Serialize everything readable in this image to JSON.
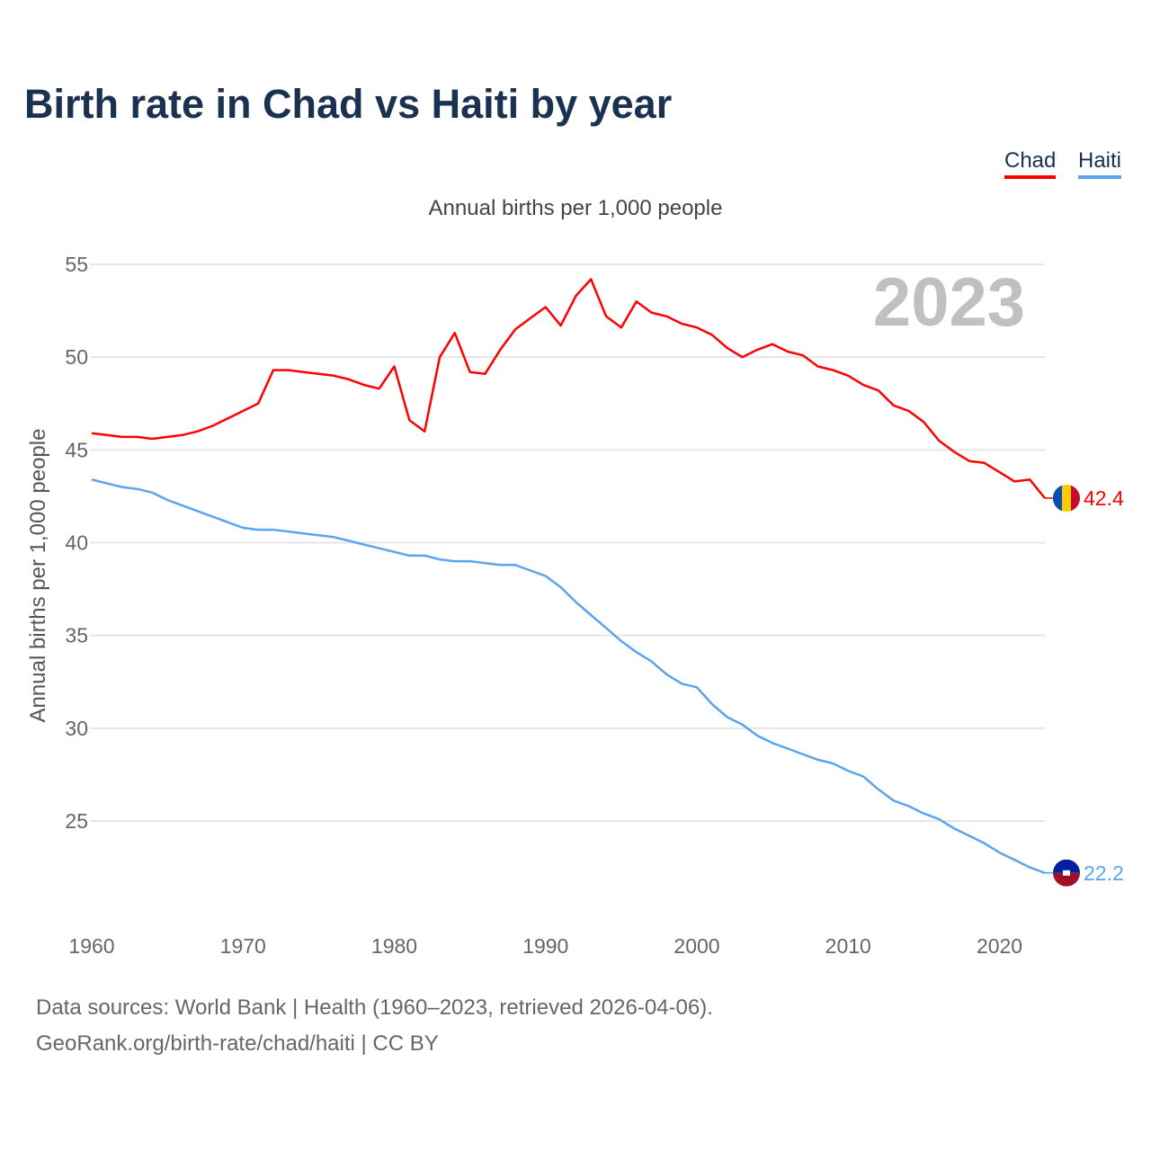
{
  "title": "Birth rate in Chad vs Haiti by year",
  "legend": [
    {
      "label": "Chad",
      "color": "#ff0000"
    },
    {
      "label": "Haiti",
      "color": "#5aa5ee"
    }
  ],
  "subtitle": "Annual births per 1,000 people",
  "footer": {
    "line1": "Data sources: World Bank | Health (1960–2023, retrieved 2026-04-06).",
    "line2": "GeoRank.org/birth-rate/chad/haiti | CC BY"
  },
  "chart_data": {
    "type": "line",
    "title": "Birth rate in Chad vs Haiti by year",
    "ylabel": "Annual births per 1,000 people",
    "xlabel": "",
    "year_label": "2023",
    "xlim": [
      1960,
      2023
    ],
    "ylim": [
      20,
      55
    ],
    "x_ticks": [
      1960,
      1970,
      1980,
      1990,
      2000,
      2010,
      2020
    ],
    "y_ticks": [
      25,
      30,
      35,
      40,
      45,
      50,
      55
    ],
    "grid": true,
    "legend_position": "top-right",
    "x_start": 1960,
    "series": [
      {
        "name": "Chad",
        "color": "#ff0000",
        "end_label": "42.4",
        "flag": "chad-flag",
        "values": [
          45.9,
          45.8,
          45.7,
          45.7,
          45.6,
          45.7,
          45.8,
          46.0,
          46.3,
          46.7,
          47.1,
          47.5,
          49.3,
          49.3,
          49.2,
          49.1,
          49.0,
          48.8,
          48.5,
          48.3,
          49.5,
          46.6,
          46.0,
          50.0,
          51.3,
          49.2,
          49.1,
          50.4,
          51.5,
          52.1,
          52.7,
          51.7,
          53.3,
          54.2,
          52.2,
          51.6,
          53.0,
          52.4,
          52.2,
          51.8,
          51.6,
          51.2,
          50.5,
          50.0,
          50.4,
          50.7,
          50.3,
          50.1,
          49.5,
          49.3,
          49.0,
          48.5,
          48.2,
          47.4,
          47.1,
          46.5,
          45.5,
          44.9,
          44.4,
          44.3,
          43.8,
          43.3,
          43.4,
          42.4
        ]
      },
      {
        "name": "Haiti",
        "color": "#5aa5ee",
        "end_label": "22.2",
        "flag": "haiti-flag",
        "values": [
          43.4,
          43.2,
          43.0,
          42.9,
          42.7,
          42.3,
          42.0,
          41.7,
          41.4,
          41.1,
          40.8,
          40.7,
          40.7,
          40.6,
          40.5,
          40.4,
          40.3,
          40.1,
          39.9,
          39.7,
          39.5,
          39.3,
          39.3,
          39.1,
          39.0,
          39.0,
          38.9,
          38.8,
          38.8,
          38.5,
          38.2,
          37.6,
          36.8,
          36.1,
          35.4,
          34.7,
          34.1,
          33.6,
          32.9,
          32.4,
          32.2,
          31.3,
          30.6,
          30.2,
          29.6,
          29.2,
          28.9,
          28.6,
          28.3,
          28.1,
          27.7,
          27.4,
          26.7,
          26.1,
          25.8,
          25.4,
          25.1,
          24.6,
          24.2,
          23.8,
          23.3,
          22.9,
          22.5,
          22.2
        ]
      }
    ]
  }
}
